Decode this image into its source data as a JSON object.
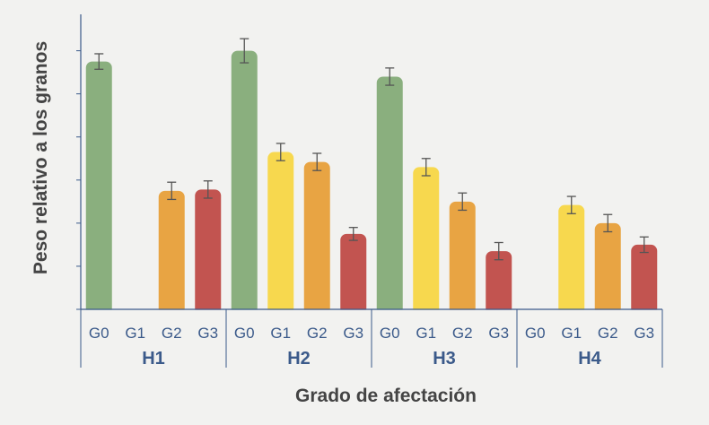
{
  "chart_data": {
    "type": "bar",
    "title": "",
    "ylabel": "Peso relativo a los granos",
    "xlabel": "Grado de afectación",
    "ylim": [
      0,
      6
    ],
    "y_ticks": [
      0,
      1,
      2,
      3,
      4,
      5,
      6
    ],
    "y_tick_labels_shown": false,
    "grid": false,
    "legend": "none",
    "colors": {
      "G0": "#8aaf7e",
      "G1": "#f7d84e",
      "G2": "#e8a443",
      "G3": "#c25450",
      "error_bar": "#555555",
      "axis": "#3b5a8a",
      "tick_label": "#3b5a8a",
      "title_text": "#444444"
    },
    "groups": [
      {
        "name": "H1",
        "bars": [
          {
            "category": "G0",
            "value": 5.75,
            "error": 0.18
          },
          {
            "category": "G1",
            "value": null,
            "error": null
          },
          {
            "category": "G2",
            "value": 2.75,
            "error": 0.2
          },
          {
            "category": "G3",
            "value": 2.78,
            "error": 0.2
          }
        ]
      },
      {
        "name": "H2",
        "bars": [
          {
            "category": "G0",
            "value": 6.0,
            "error": 0.28
          },
          {
            "category": "G1",
            "value": 3.65,
            "error": 0.2
          },
          {
            "category": "G2",
            "value": 3.42,
            "error": 0.2
          },
          {
            "category": "G3",
            "value": 1.75,
            "error": 0.15
          }
        ]
      },
      {
        "name": "H3",
        "bars": [
          {
            "category": "G0",
            "value": 5.4,
            "error": 0.2
          },
          {
            "category": "G1",
            "value": 3.3,
            "error": 0.2
          },
          {
            "category": "G2",
            "value": 2.5,
            "error": 0.2
          },
          {
            "category": "G3",
            "value": 1.35,
            "error": 0.2
          }
        ]
      },
      {
        "name": "H4",
        "bars": [
          {
            "category": "G0",
            "value": null,
            "error": null
          },
          {
            "category": "G1",
            "value": 2.42,
            "error": 0.2
          },
          {
            "category": "G2",
            "value": 2.0,
            "error": 0.2
          },
          {
            "category": "G3",
            "value": 1.5,
            "error": 0.18
          }
        ]
      }
    ]
  }
}
